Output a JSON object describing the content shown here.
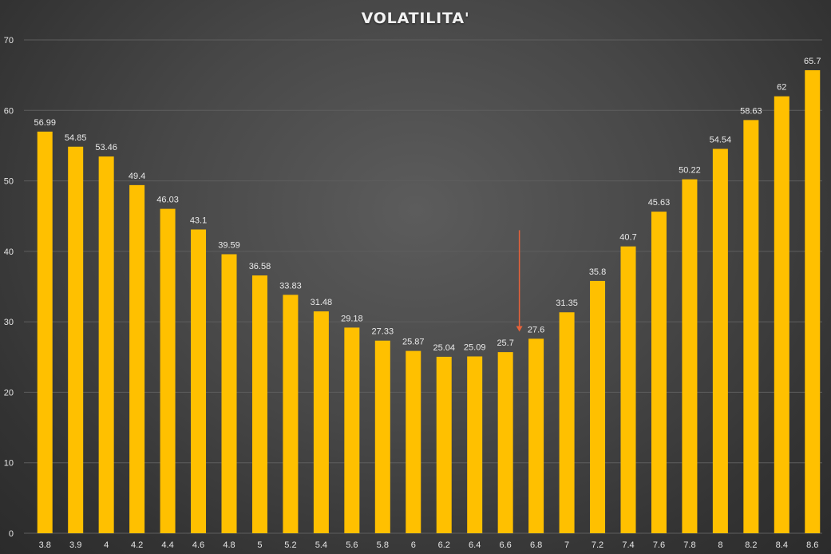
{
  "chart_data": {
    "type": "bar",
    "title": "VOLATILITA'",
    "xlabel": "",
    "ylabel": "",
    "ylim": [
      0,
      70
    ],
    "yticks": [
      "0",
      "10",
      "20",
      "30",
      "40",
      "50",
      "60",
      "70"
    ],
    "categories": [
      "3.8",
      "3.9",
      "4",
      "4.2",
      "4.4",
      "4.6",
      "4.8",
      "5",
      "5.2",
      "5.4",
      "5.6",
      "5.8",
      "6",
      "6.2",
      "6.4",
      "6.6",
      "6.8",
      "7",
      "7.2",
      "7.4",
      "7.6",
      "7.8",
      "8",
      "8.2",
      "8.4",
      "8.6"
    ],
    "values": [
      56.99,
      54.85,
      53.46,
      49.4,
      46.03,
      43.1,
      39.59,
      36.58,
      33.83,
      31.48,
      29.18,
      27.33,
      25.87,
      25.04,
      25.09,
      25.7,
      27.6,
      31.35,
      35.8,
      40.7,
      45.63,
      50.22,
      54.54,
      58.63,
      62,
      65.7
    ],
    "data_labels": [
      "56.99",
      "54.85",
      "53.46",
      "49.4",
      "46.03",
      "43.1",
      "39.59",
      "36.58",
      "33.83",
      "31.48",
      "29.18",
      "27.33",
      "25.87",
      "25.04",
      "25.09",
      "25.7",
      "27.6",
      "31.35",
      "35.8",
      "40.7",
      "45.63",
      "50.22",
      "54.54",
      "58.63",
      "62",
      "65.7"
    ],
    "grid": true,
    "legend": "none",
    "annotation": {
      "type": "arrow",
      "target_category": "6.8",
      "color": "#e8623a"
    },
    "colors": {
      "bar": "#ffc000",
      "grid": "#5e5e5e",
      "text": "#e6e6e6"
    }
  }
}
